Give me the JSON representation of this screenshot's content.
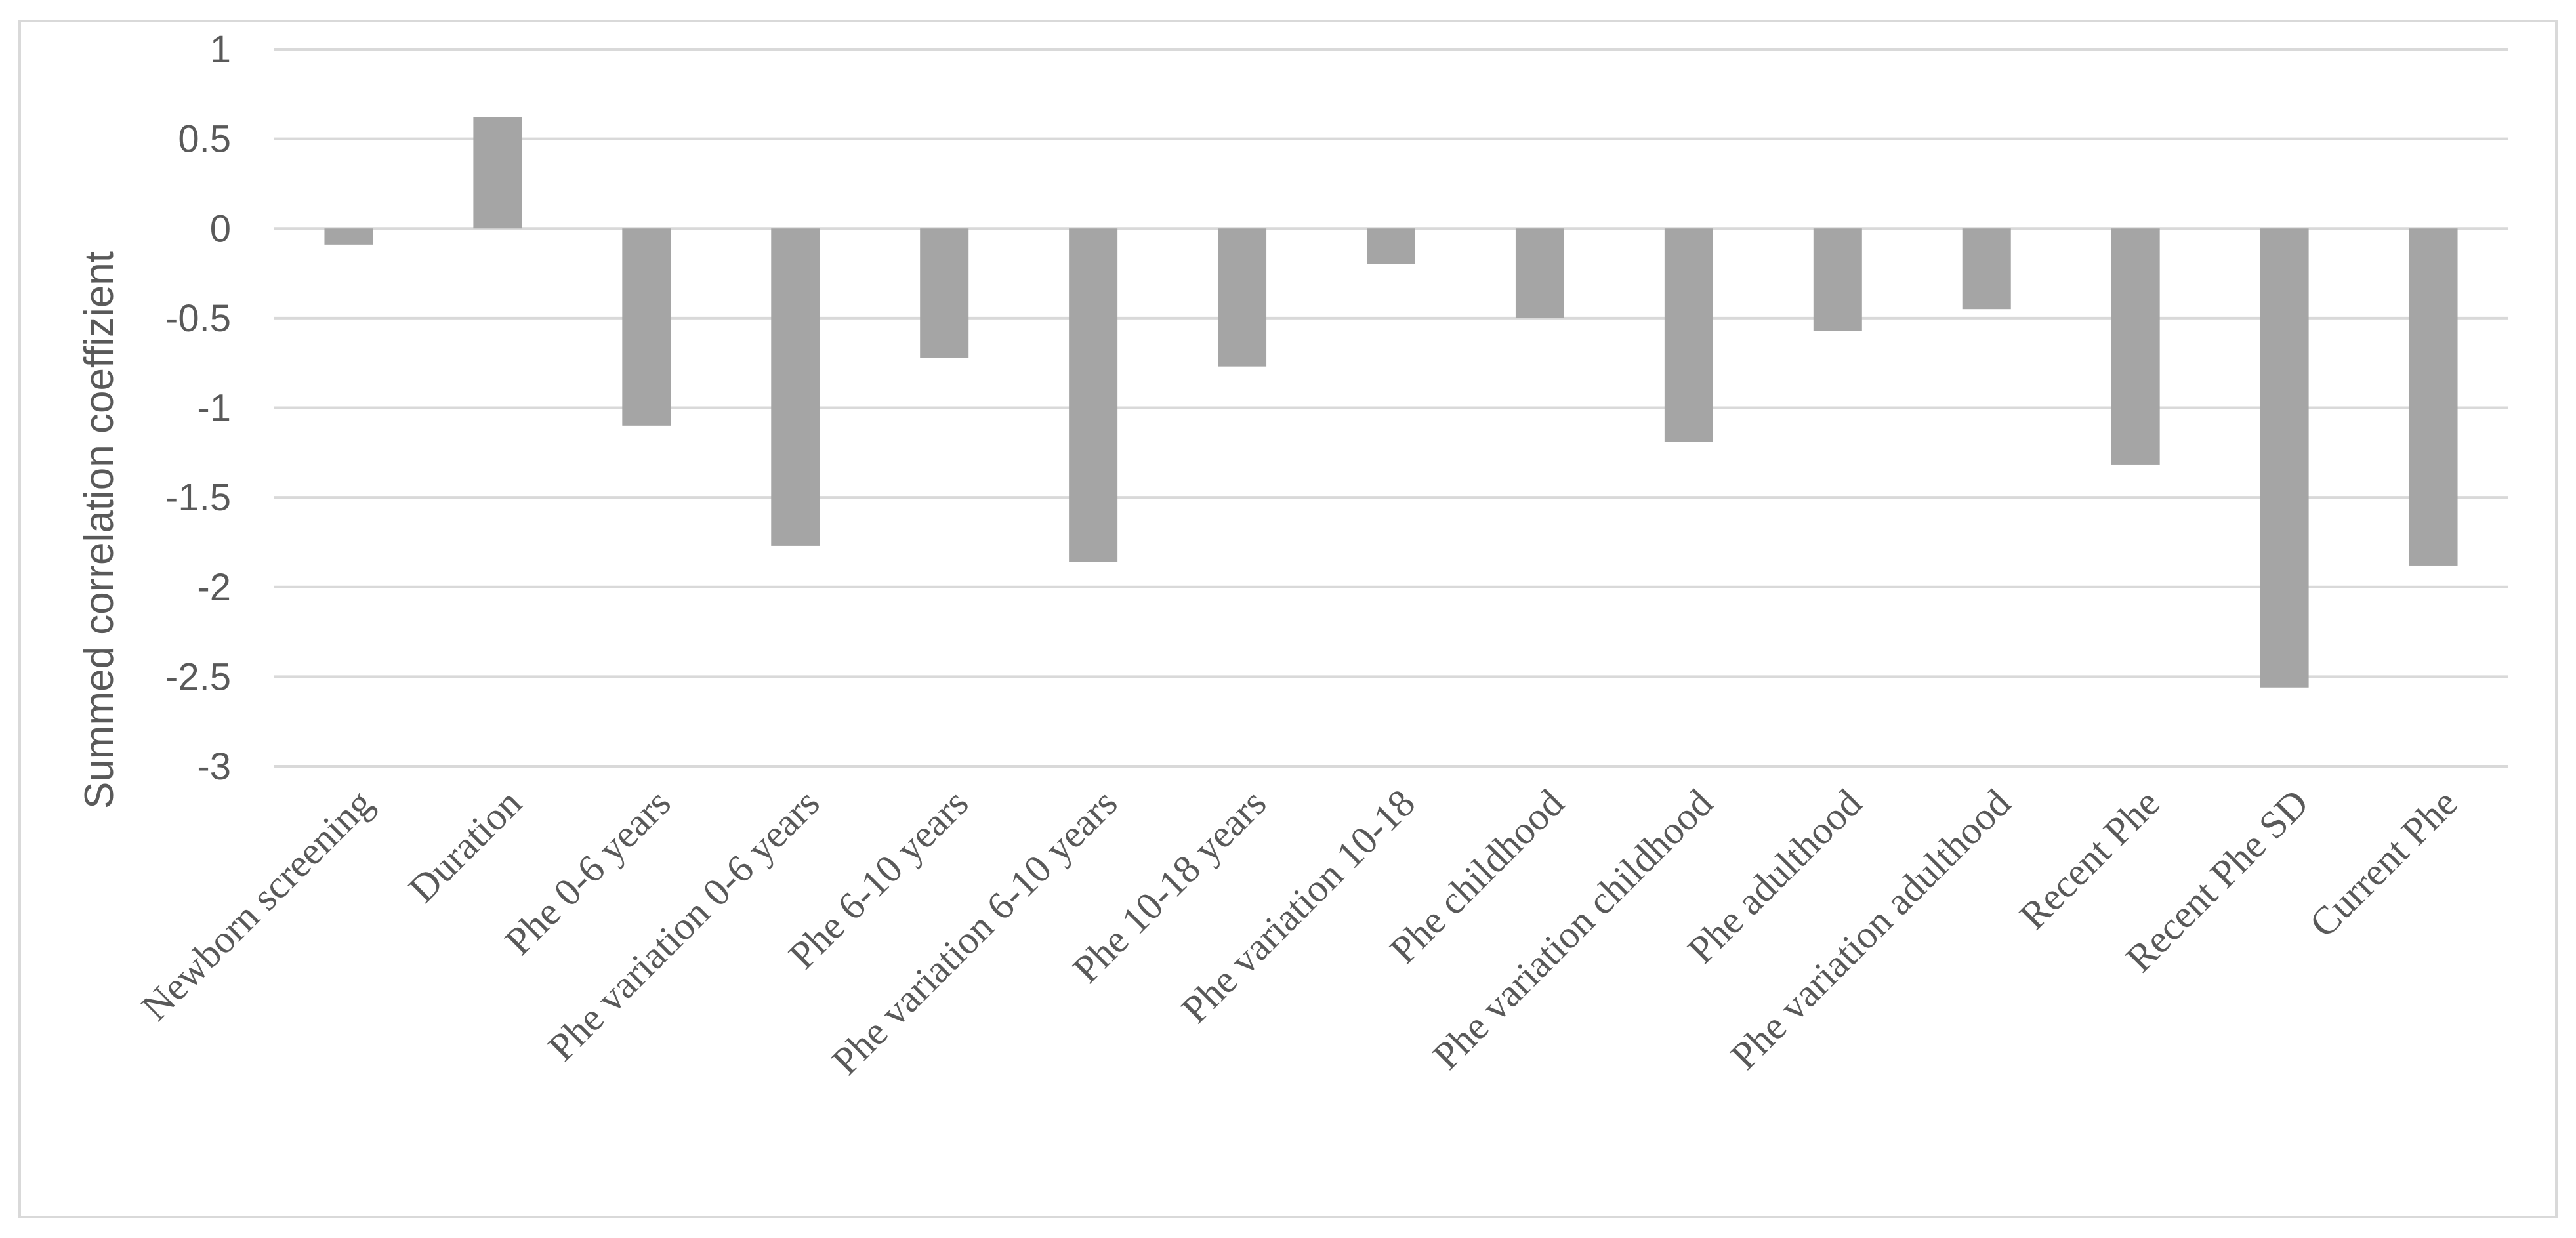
{
  "chart_data": {
    "type": "bar",
    "title": "",
    "xlabel": "",
    "ylabel": "Summed correlation coeffizient",
    "ylim": [
      -3,
      1
    ],
    "yticks": [
      1,
      0.5,
      0,
      -0.5,
      -1,
      -1.5,
      -2,
      -2.5,
      -3
    ],
    "ytick_labels": [
      "1",
      "0.5",
      "0",
      "-0.5",
      "-1",
      "-1.5",
      "-2",
      "-2.5",
      "-3"
    ],
    "grid": true,
    "legend": "none",
    "colors": {
      "bar": "#a5a5a5",
      "grid": "#d9d9d9",
      "text": "#595959",
      "border": "#d9d9d9"
    },
    "categories": [
      "Newborn screening",
      "Duration",
      "Phe 0-6 years",
      "Phe variation 0-6 years",
      "Phe 6-10 years",
      "Phe variation 6-10 years",
      "Phe 10-18 years",
      "Phe variation 10-18",
      "Phe childhood",
      "Phe variation childhood",
      "Phe adulthood",
      "Phe variation adulthood",
      "Recent Phe",
      "Recent Phe SD",
      "Current Phe"
    ],
    "values": [
      -0.09,
      0.62,
      -1.1,
      -1.77,
      -0.72,
      -1.86,
      -0.77,
      -0.2,
      -0.5,
      -1.19,
      -0.57,
      -0.45,
      -1.32,
      -2.56,
      -1.88
    ]
  }
}
